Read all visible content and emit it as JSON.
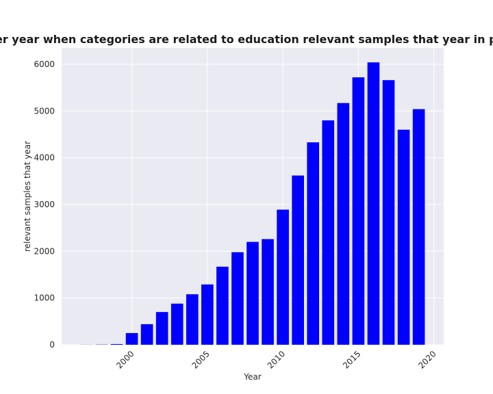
{
  "chart_data": {
    "type": "bar",
    "title": "Number of samples per year when categories are related to education relevant samples that year in privacy policies by Year",
    "xlabel": "Year",
    "ylabel": "relevant samples that year",
    "x": [
      1997,
      1998,
      1999,
      2000,
      2001,
      2002,
      2003,
      2004,
      2005,
      2006,
      2007,
      2008,
      2009,
      2010,
      2011,
      2012,
      2013,
      2014,
      2015,
      2016,
      2017,
      2018,
      2019
    ],
    "values": [
      2,
      5,
      15,
      250,
      440,
      700,
      880,
      1080,
      1290,
      1670,
      1980,
      2200,
      2260,
      2890,
      3620,
      4330,
      4800,
      5170,
      5720,
      6040,
      5660,
      4600,
      5040
    ],
    "xticks": [
      2000,
      2005,
      2010,
      2015,
      2020
    ],
    "yticks": [
      0,
      1000,
      2000,
      3000,
      4000,
      5000,
      6000
    ],
    "xlim": [
      1995.35,
      2020.65
    ],
    "ylim": [
      0,
      6350
    ],
    "bar_color": "#0000ff",
    "background_color": "#eaeaf2",
    "grid_color": "#ffffff",
    "grid": true
  }
}
